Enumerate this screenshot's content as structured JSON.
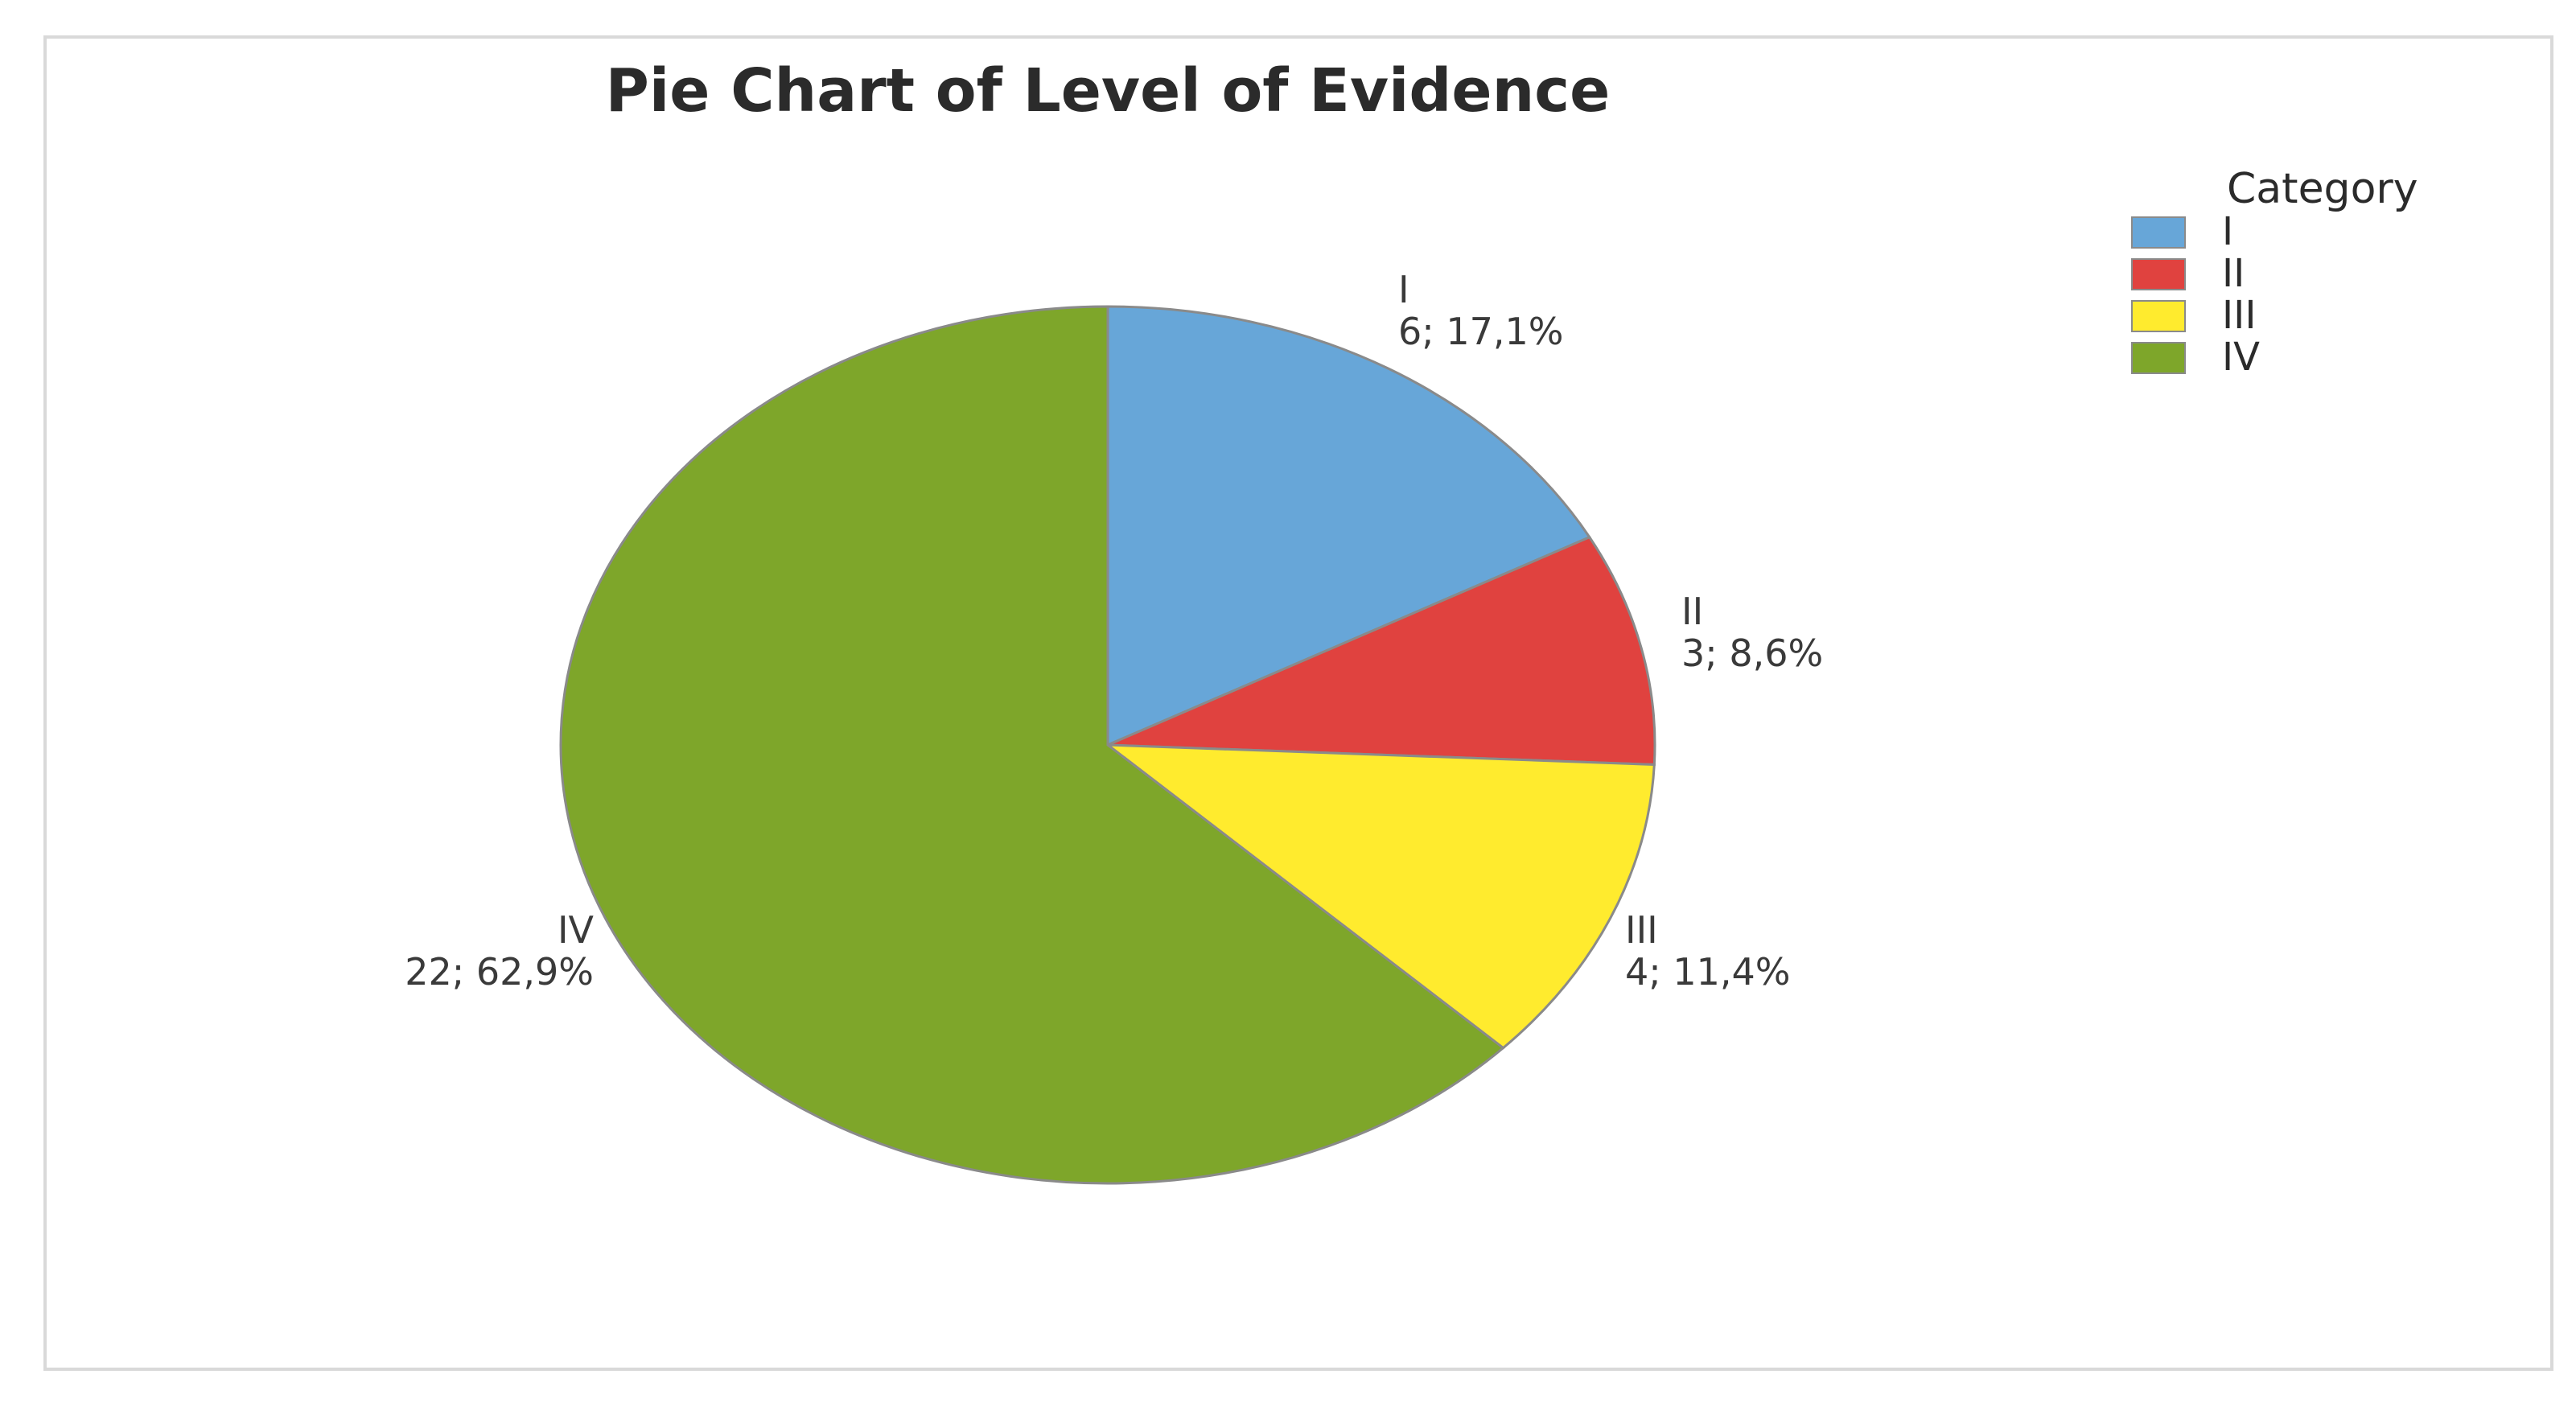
{
  "chart_data": {
    "type": "pie",
    "title": "Pie Chart of Level of Evidence",
    "legend_title": "Category",
    "legend_position": "top-right",
    "categories": [
      "I",
      "II",
      "III",
      "IV"
    ],
    "values": [
      6,
      3,
      4,
      22
    ],
    "percent_labels": [
      "17,1%",
      "8,6%",
      "11,4%",
      "62,9%"
    ],
    "data_labels": [
      "6; 17,1%",
      "3; 8,6%",
      "4; 11,4%",
      "22; 62,9%"
    ],
    "colors": [
      "#67a6d8",
      "#e0423f",
      "#ffeb2e",
      "#7ea62a"
    ]
  }
}
